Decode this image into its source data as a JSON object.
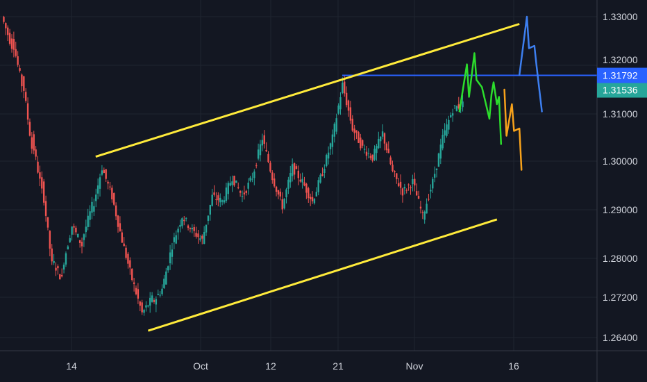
{
  "chart_data": {
    "type": "candlestick",
    "title": "",
    "xlabel": "",
    "ylabel": "",
    "grid": true,
    "ylim": [
      1.261,
      1.333
    ],
    "x_ticks": [
      "14",
      "Oct",
      "12",
      "21",
      "Nov",
      "16"
    ],
    "y_ticks": [
      "1.33000",
      "1.31000",
      "1.30000",
      "1.29000",
      "1.28000",
      "1.27200",
      "1.26400"
    ],
    "price_badges": [
      {
        "label": "1.31792",
        "value": 1.31792,
        "color": "#2962ff"
      },
      {
        "label": "1.31536",
        "value": 1.31536,
        "color": "#26a69a"
      }
    ],
    "hidden_tick_behind_badge": "1.32000",
    "resistance_level": 1.31792,
    "channel": {
      "upper": [
        {
          "date": "Sep 17",
          "price": 1.3012
        },
        {
          "date": "Nov 15",
          "price": 1.3285
        }
      ],
      "lower": [
        {
          "date": "Sep 24",
          "price": 1.2654
        },
        {
          "date": "Nov 12",
          "price": 1.2883
        }
      ]
    },
    "ohlc_path": [
      [
        1.33,
        1.324
      ],
      [
        1.326,
        1.316
      ],
      [
        1.318,
        1.303
      ],
      [
        1.305,
        1.294
      ],
      [
        1.296,
        1.279
      ],
      [
        1.28,
        1.276
      ],
      [
        1.278,
        1.287
      ],
      [
        1.287,
        1.283
      ],
      [
        1.284,
        1.291
      ],
      [
        1.29,
        1.299
      ],
      [
        1.299,
        1.293
      ],
      [
        1.293,
        1.284
      ],
      [
        1.284,
        1.276
      ],
      [
        1.276,
        1.269
      ],
      [
        1.269,
        1.272
      ],
      [
        1.271,
        1.274
      ],
      [
        1.274,
        1.283
      ],
      [
        1.283,
        1.289
      ],
      [
        1.289,
        1.286
      ],
      [
        1.286,
        1.284
      ],
      [
        1.284,
        1.293
      ],
      [
        1.293,
        1.292
      ],
      [
        1.292,
        1.297
      ],
      [
        1.297,
        1.293
      ],
      [
        1.293,
        1.297
      ],
      [
        1.297,
        1.305
      ],
      [
        1.305,
        1.297
      ],
      [
        1.297,
        1.291
      ],
      [
        1.291,
        1.299
      ],
      [
        1.299,
        1.296
      ],
      [
        1.296,
        1.292
      ],
      [
        1.292,
        1.298
      ],
      [
        1.298,
        1.305
      ],
      [
        1.305,
        1.316
      ],
      [
        1.316,
        1.307
      ],
      [
        1.307,
        1.303
      ],
      [
        1.303,
        1.301
      ],
      [
        1.301,
        1.306
      ],
      [
        1.306,
        1.298
      ],
      [
        1.298,
        1.294
      ],
      [
        1.294,
        1.296
      ],
      [
        1.296,
        1.289
      ],
      [
        1.289,
        1.296
      ],
      [
        1.296,
        1.305
      ],
      [
        1.305,
        1.311
      ],
      [
        1.311,
        1.312
      ]
    ],
    "projections": [
      {
        "name": "green",
        "color": "#2cdd2c",
        "points": [
          {
            "date": "Nov 7",
            "price": 1.3105
          },
          {
            "date": "Nov 8",
            "price": 1.3202
          },
          {
            "date": "Nov 8",
            "price": 1.3135
          },
          {
            "date": "Nov 9",
            "price": 1.3225
          },
          {
            "date": "Nov 9",
            "price": 1.317
          },
          {
            "date": "Nov 10",
            "price": 1.3155
          },
          {
            "date": "Nov 11",
            "price": 1.309
          },
          {
            "date": "Nov 11",
            "price": 1.314
          },
          {
            "date": "Nov 11",
            "price": 1.3165
          },
          {
            "date": "Nov 12",
            "price": 1.312
          },
          {
            "date": "Nov 12",
            "price": 1.3135
          },
          {
            "date": "Nov 12",
            "price": 1.3038
          }
        ]
      },
      {
        "name": "orange",
        "color": "#f7a21b",
        "points": [
          {
            "date": "Nov 13",
            "price": 1.315
          },
          {
            "date": "Nov 13",
            "price": 1.3055
          },
          {
            "date": "Nov 14",
            "price": 1.312
          },
          {
            "date": "Nov 14",
            "price": 1.3065
          },
          {
            "date": "Nov 15",
            "price": 1.307
          },
          {
            "date": "Nov 15",
            "price": 1.2985
          }
        ]
      },
      {
        "name": "blue",
        "color": "#3d7ff0",
        "points": [
          {
            "date": "Nov 15",
            "price": 1.318
          },
          {
            "date": "Nov 16",
            "price": 1.33
          },
          {
            "date": "Nov 16",
            "price": 1.3235
          },
          {
            "date": "Nov 17",
            "price": 1.324
          },
          {
            "date": "Nov 17",
            "price": 1.32
          },
          {
            "date": "Nov 18",
            "price": 1.3105
          }
        ]
      }
    ]
  },
  "colors": {
    "background": "#131722",
    "grid": "#1f2430",
    "up": "#26a69a",
    "down": "#ef5350",
    "channel": "#ffeb3b",
    "level": "#2962ff",
    "axis_border": "#363a45"
  }
}
